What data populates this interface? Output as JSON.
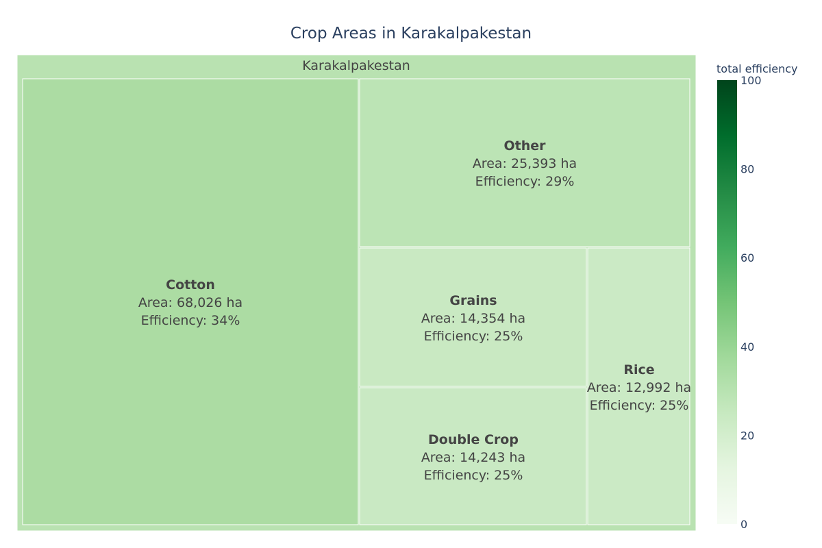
{
  "chart_data": {
    "type": "treemap",
    "title": "Crop Areas in Karakalpakestan",
    "root": {
      "label": "Karakalpakestan"
    },
    "leaves": [
      {
        "label": "Cotton",
        "area": 68026,
        "area_text": "Area: 68,026 ha",
        "efficiency": 34,
        "efficiency_text": "Efficiency: 34%"
      },
      {
        "label": "Other",
        "area": 25393,
        "area_text": "Area: 25,393 ha",
        "efficiency": 29,
        "efficiency_text": "Efficiency: 29%"
      },
      {
        "label": "Grains",
        "area": 14354,
        "area_text": "Area: 14,354 ha",
        "efficiency": 25,
        "efficiency_text": "Efficiency: 25%"
      },
      {
        "label": "Double Crop",
        "area": 14243,
        "area_text": "Area: 14,243 ha",
        "efficiency": 25,
        "efficiency_text": "Efficiency: 25%"
      },
      {
        "label": "Rice",
        "area": 12992,
        "area_text": "Area: 12,992 ha",
        "efficiency": 25,
        "efficiency_text": "Efficiency: 25%"
      }
    ],
    "colorbar": {
      "title": "total efficiency",
      "range": [
        0,
        100
      ],
      "ticks": [
        "0",
        "20",
        "40",
        "60",
        "80",
        "100"
      ],
      "colorscale": [
        "#f7fcf5",
        "#e5f5e0",
        "#c7e9c0",
        "#a1d99b",
        "#74c476",
        "#41ab5d",
        "#238b45",
        "#006d2c",
        "#00441b"
      ]
    },
    "colors": {
      "root": "#b9e2b1",
      "Cotton": "#acdca3",
      "Other": "#bce4b5",
      "Grains": "#c9e9c2",
      "Double Crop": "#c9e9c3",
      "Rice": "#cbeac5"
    }
  }
}
